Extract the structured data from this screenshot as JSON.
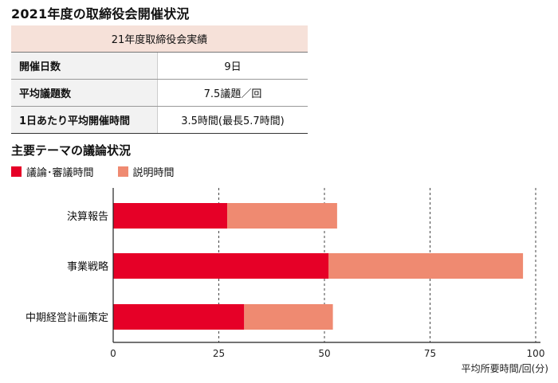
{
  "title": "2021年度の取締役会開催状況",
  "table": {
    "header": "21年度取締役会実績",
    "rows": [
      {
        "label": "開催日数",
        "value": "9日"
      },
      {
        "label": "平均議題数",
        "value": "7.5議題／回"
      },
      {
        "label": "1日あたり平均開催時間",
        "value": "3.5時間(最長5.7時間)"
      }
    ]
  },
  "colors": {
    "discussion": "#e60027",
    "explanation": "#ef8a71"
  },
  "chart_data": {
    "type": "bar",
    "orientation": "horizontal",
    "stacked": true,
    "title": "主要テーマの議論状況",
    "xlabel": "平均所要時間/回(分)",
    "ylabel": "",
    "categories": [
      "決算報告",
      "事業戦略",
      "中期経営計画策定"
    ],
    "series": [
      {
        "name": "議論･審議時間",
        "color": "#e60027",
        "values": [
          27,
          51,
          31
        ]
      },
      {
        "name": "説明時間",
        "color": "#ef8a71",
        "values": [
          26,
          46,
          21
        ]
      }
    ],
    "xlim": [
      0,
      100
    ],
    "xticks": [
      0,
      25,
      50,
      75,
      100
    ],
    "grid": "vertical dashed",
    "legend": "top-left"
  }
}
